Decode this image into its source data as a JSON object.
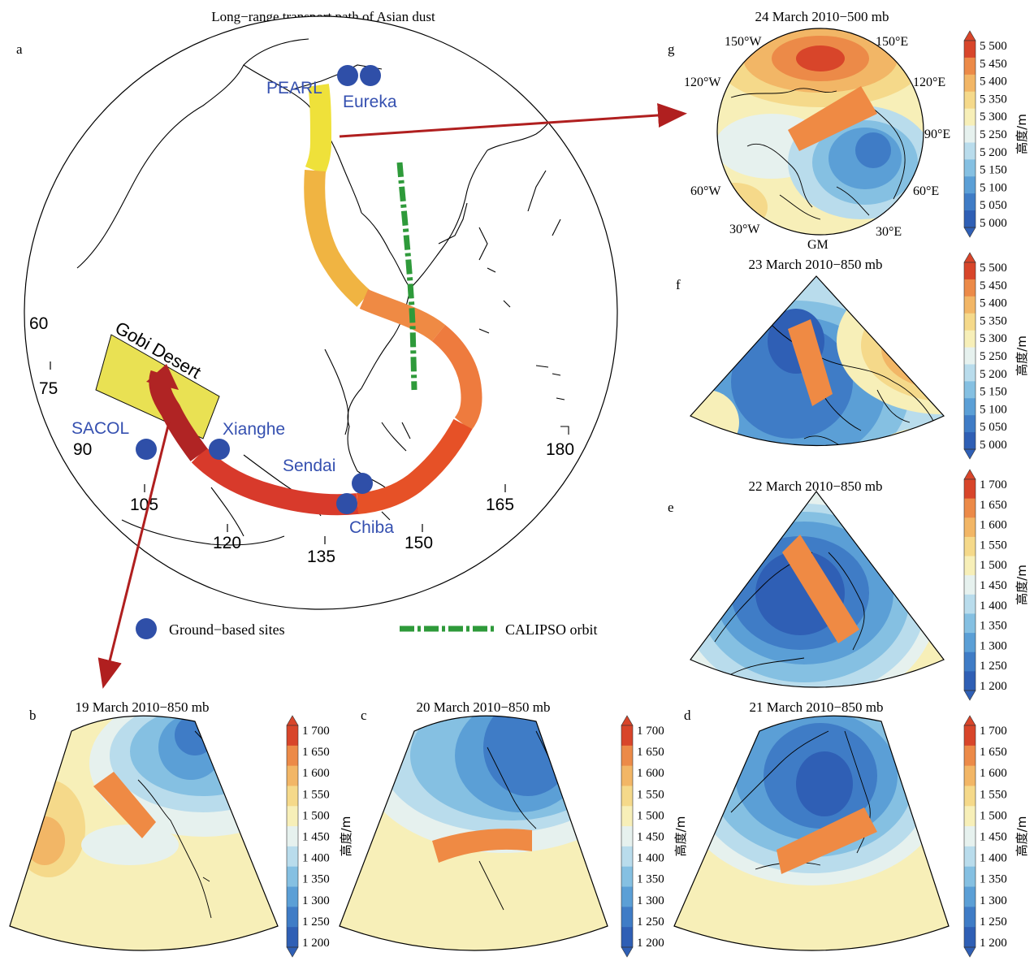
{
  "panel_a": {
    "letter": "a",
    "title": "Long−range transport path of Asian dust",
    "region_label": "Gobi Desert",
    "sites": [
      "PEARL",
      "Eureka",
      "SACOL",
      "Xianghe",
      "Sendai",
      "Chiba"
    ],
    "lon_labels": [
      "60",
      "75",
      "90",
      "105",
      "120",
      "135",
      "150",
      "165",
      "180"
    ],
    "legend_sites": "Ground−based sites",
    "legend_orbit": "CALIPSO orbit",
    "colors": {
      "site": "#2f4fa8",
      "orbit": "#2e9a3a",
      "region": "#e8e04a",
      "arrow": "#b01f1f"
    }
  },
  "panel_g": {
    "letter": "g",
    "title": "24 March 2010−500 mb",
    "lon_labels": [
      "150°W",
      "150°E",
      "120°W",
      "120°E",
      "90°E",
      "60°W",
      "60°E",
      "30°W",
      "30°E",
      "GM"
    ]
  },
  "panel_f": {
    "letter": "f",
    "title": "23 March 2010−850 mb"
  },
  "panel_e": {
    "letter": "e",
    "title": "22 March 2010−850 mb"
  },
  "panel_b": {
    "letter": "b",
    "title": "19 March 2010−850 mb"
  },
  "panel_c": {
    "letter": "c",
    "title": "20 March 2010−850 mb"
  },
  "panel_d": {
    "letter": "d",
    "title": "21 March 2010−850 mb"
  },
  "colorbar_500": {
    "label": "高度/m",
    "ticks": [
      "5 500",
      "5 450",
      "5 400",
      "5 350",
      "5 300",
      "5 250",
      "5 200",
      "5 150",
      "5 100",
      "5 050",
      "5 000"
    ]
  },
  "colorbar_850": {
    "label": "高度/m",
    "ticks": [
      "1 700",
      "1 650",
      "1 600",
      "1 550",
      "1 500",
      "1 450",
      "1 400",
      "1 350",
      "1 300",
      "1 250",
      "1 200"
    ]
  },
  "palette": [
    "#2f5fb5",
    "#3f7cc6",
    "#5b9fd6",
    "#85c0e2",
    "#b9dcec",
    "#e6f1ee",
    "#f7efb8",
    "#f5d98a",
    "#f2b666",
    "#ec8a48",
    "#d8452a"
  ]
}
